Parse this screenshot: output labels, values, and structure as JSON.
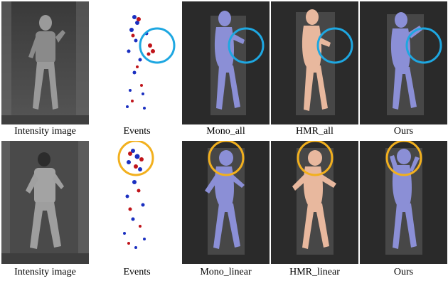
{
  "rows": [
    {
      "captions": [
        "Intensity image",
        "Events",
        "Mono_all",
        "HMR_all",
        "Ours"
      ],
      "highlight_color": "#1ea7e1"
    },
    {
      "captions": [
        "Intensity image",
        "Events",
        "Mono_linear",
        "HMR_linear",
        "Ours"
      ],
      "highlight_color": "#f2b01e"
    }
  ],
  "colors": {
    "dark_bg": "#2a2a2a",
    "blue_mesh": "#8b8fd6",
    "skin_mesh": "#e8b89e",
    "event_red": "#c0141a",
    "event_blue": "#1a2fc0"
  }
}
